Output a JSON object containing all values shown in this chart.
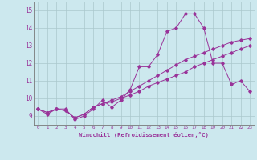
{
  "xlabel": "Windchill (Refroidissement éolien,°C)",
  "background_color": "#cce8ee",
  "grid_color": "#aac8cc",
  "line_color": "#993399",
  "xlim": [
    -0.5,
    23.5
  ],
  "ylim": [
    8.5,
    15.5
  ],
  "yticks": [
    9,
    10,
    11,
    12,
    13,
    14,
    15
  ],
  "ytick_labels": [
    "9",
    "10",
    "11",
    "12",
    "13",
    "14",
    "15"
  ],
  "xtick_labels": [
    "0",
    "1",
    "2",
    "3",
    "4",
    "5",
    "6",
    "7",
    "8",
    "9",
    "10",
    "11",
    "12",
    "13",
    "14",
    "15",
    "16",
    "17",
    "18",
    "19",
    "20",
    "21",
    "22",
    "23"
  ],
  "series": [
    [
      9.4,
      9.1,
      9.4,
      9.4,
      8.8,
      9.0,
      9.4,
      9.9,
      9.5,
      9.9,
      10.5,
      11.8,
      11.8,
      12.5,
      13.8,
      14.0,
      14.8,
      14.8,
      14.0,
      12.0,
      12.0,
      10.8,
      11.0,
      10.4
    ],
    [
      9.4,
      9.2,
      9.4,
      9.3,
      8.9,
      9.1,
      9.5,
      9.7,
      9.9,
      10.1,
      10.4,
      10.7,
      11.0,
      11.3,
      11.6,
      11.9,
      12.2,
      12.4,
      12.6,
      12.8,
      13.0,
      13.2,
      13.3,
      13.4
    ],
    [
      9.4,
      9.2,
      9.4,
      9.3,
      8.9,
      9.1,
      9.5,
      9.7,
      9.8,
      10.0,
      10.2,
      10.4,
      10.7,
      10.9,
      11.1,
      11.3,
      11.5,
      11.8,
      12.0,
      12.2,
      12.4,
      12.6,
      12.8,
      13.0
    ]
  ]
}
